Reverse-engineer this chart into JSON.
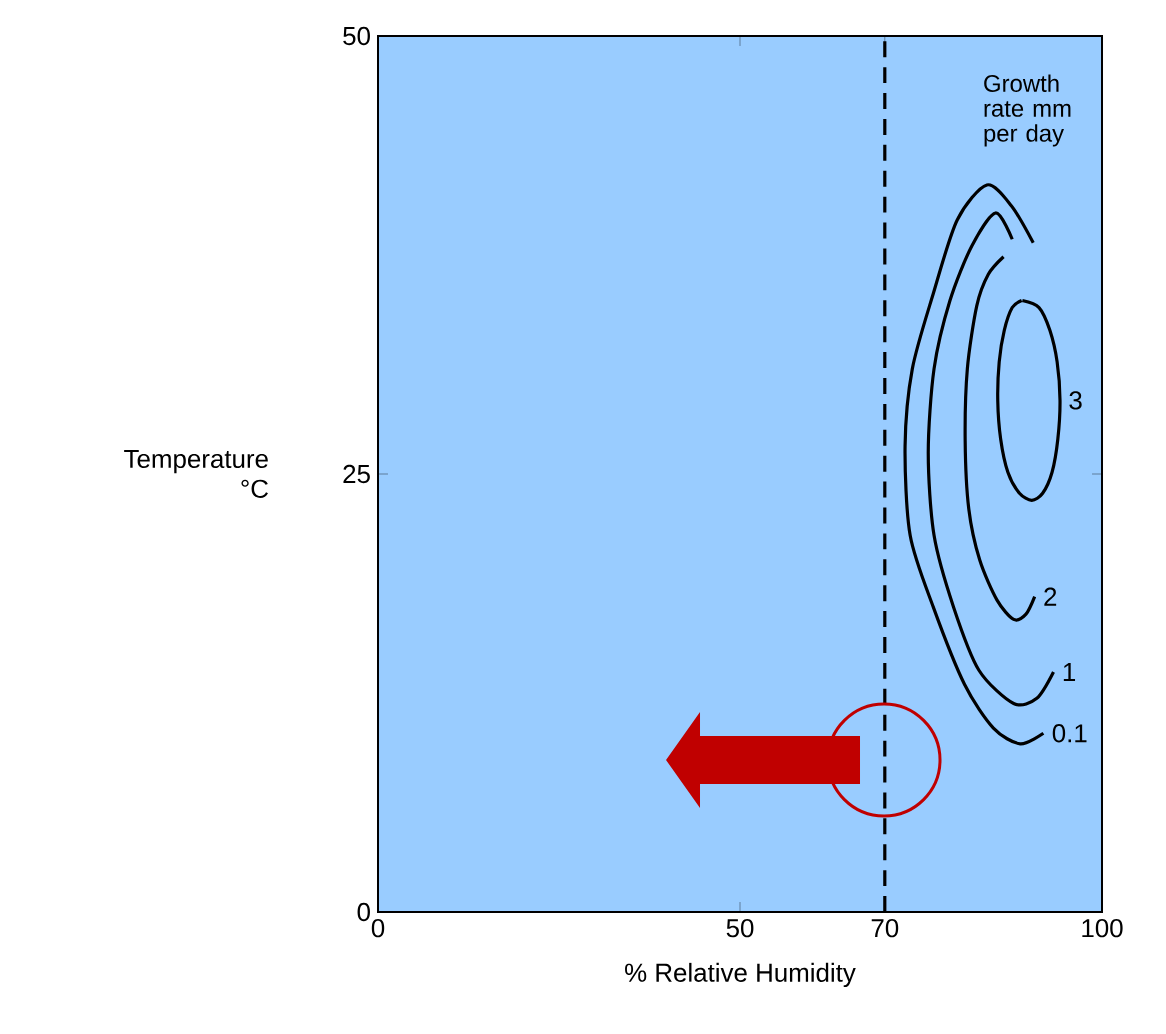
{
  "chart_data": {
    "type": "line",
    "xlabel": "% Relative Humidity",
    "ylabel": "Temperature °C",
    "annotations": [
      "Growth rate mm per day"
    ],
    "xlim": [
      0,
      100
    ],
    "ylim": [
      0,
      50
    ],
    "xticks": [
      0,
      50,
      70,
      100
    ],
    "yticks": [
      0,
      25,
      50
    ],
    "grid": false,
    "marker": "none",
    "line_style": "solid",
    "ref_lines": [
      {
        "axis": "x",
        "value": 70,
        "color": "#000000",
        "line_style": "dashed"
      }
    ],
    "series": [
      {
        "name": "0.1",
        "color": "#000000",
        "x": [
          90.5,
          87.5,
          84.1,
          80.0,
          76.7,
          73.8,
          72.8,
          73.5,
          76.7,
          81.0,
          85.0,
          88.7,
          91.9
        ],
        "values": [
          38.2,
          40.3,
          41.5,
          39.5,
          35.3,
          31.0,
          26.6,
          21.5,
          17.4,
          13.0,
          10.5,
          9.6,
          10.2
        ]
      },
      {
        "name": "1",
        "color": "#000000",
        "x": [
          87.6,
          85.3,
          82.0,
          79.0,
          76.8,
          76.0,
          76.8,
          79.5,
          83.0,
          87.8,
          91.0,
          93.3
        ],
        "values": [
          38.4,
          39.9,
          38.0,
          34.9,
          31.0,
          26.2,
          21.5,
          17.4,
          13.8,
          11.9,
          12.2,
          13.7
        ]
      },
      {
        "name": "2",
        "color": "#000000",
        "x": [
          86.4,
          84.3,
          82.7,
          81.4,
          81.1,
          81.6,
          83.1,
          85.5,
          87.8,
          89.5,
          90.7
        ],
        "values": [
          37.4,
          36.4,
          34.6,
          31.0,
          26.9,
          23.0,
          20.1,
          17.8,
          16.7,
          17.0,
          18.0
        ]
      },
      {
        "name": "3",
        "color": "#000000",
        "x": [
          89.0,
          91.3,
          92.8,
          93.8,
          94.2,
          93.9,
          93.1,
          91.8,
          90.3,
          88.6,
          87.0,
          86.0,
          85.6,
          85.8,
          86.5,
          87.6,
          88.9
        ],
        "values": [
          34.9,
          34.5,
          33.2,
          31.4,
          29.2,
          27.0,
          25.1,
          23.9,
          23.5,
          23.9,
          25.1,
          27.0,
          29.2,
          31.4,
          33.2,
          34.5,
          34.9
        ]
      }
    ]
  }
}
